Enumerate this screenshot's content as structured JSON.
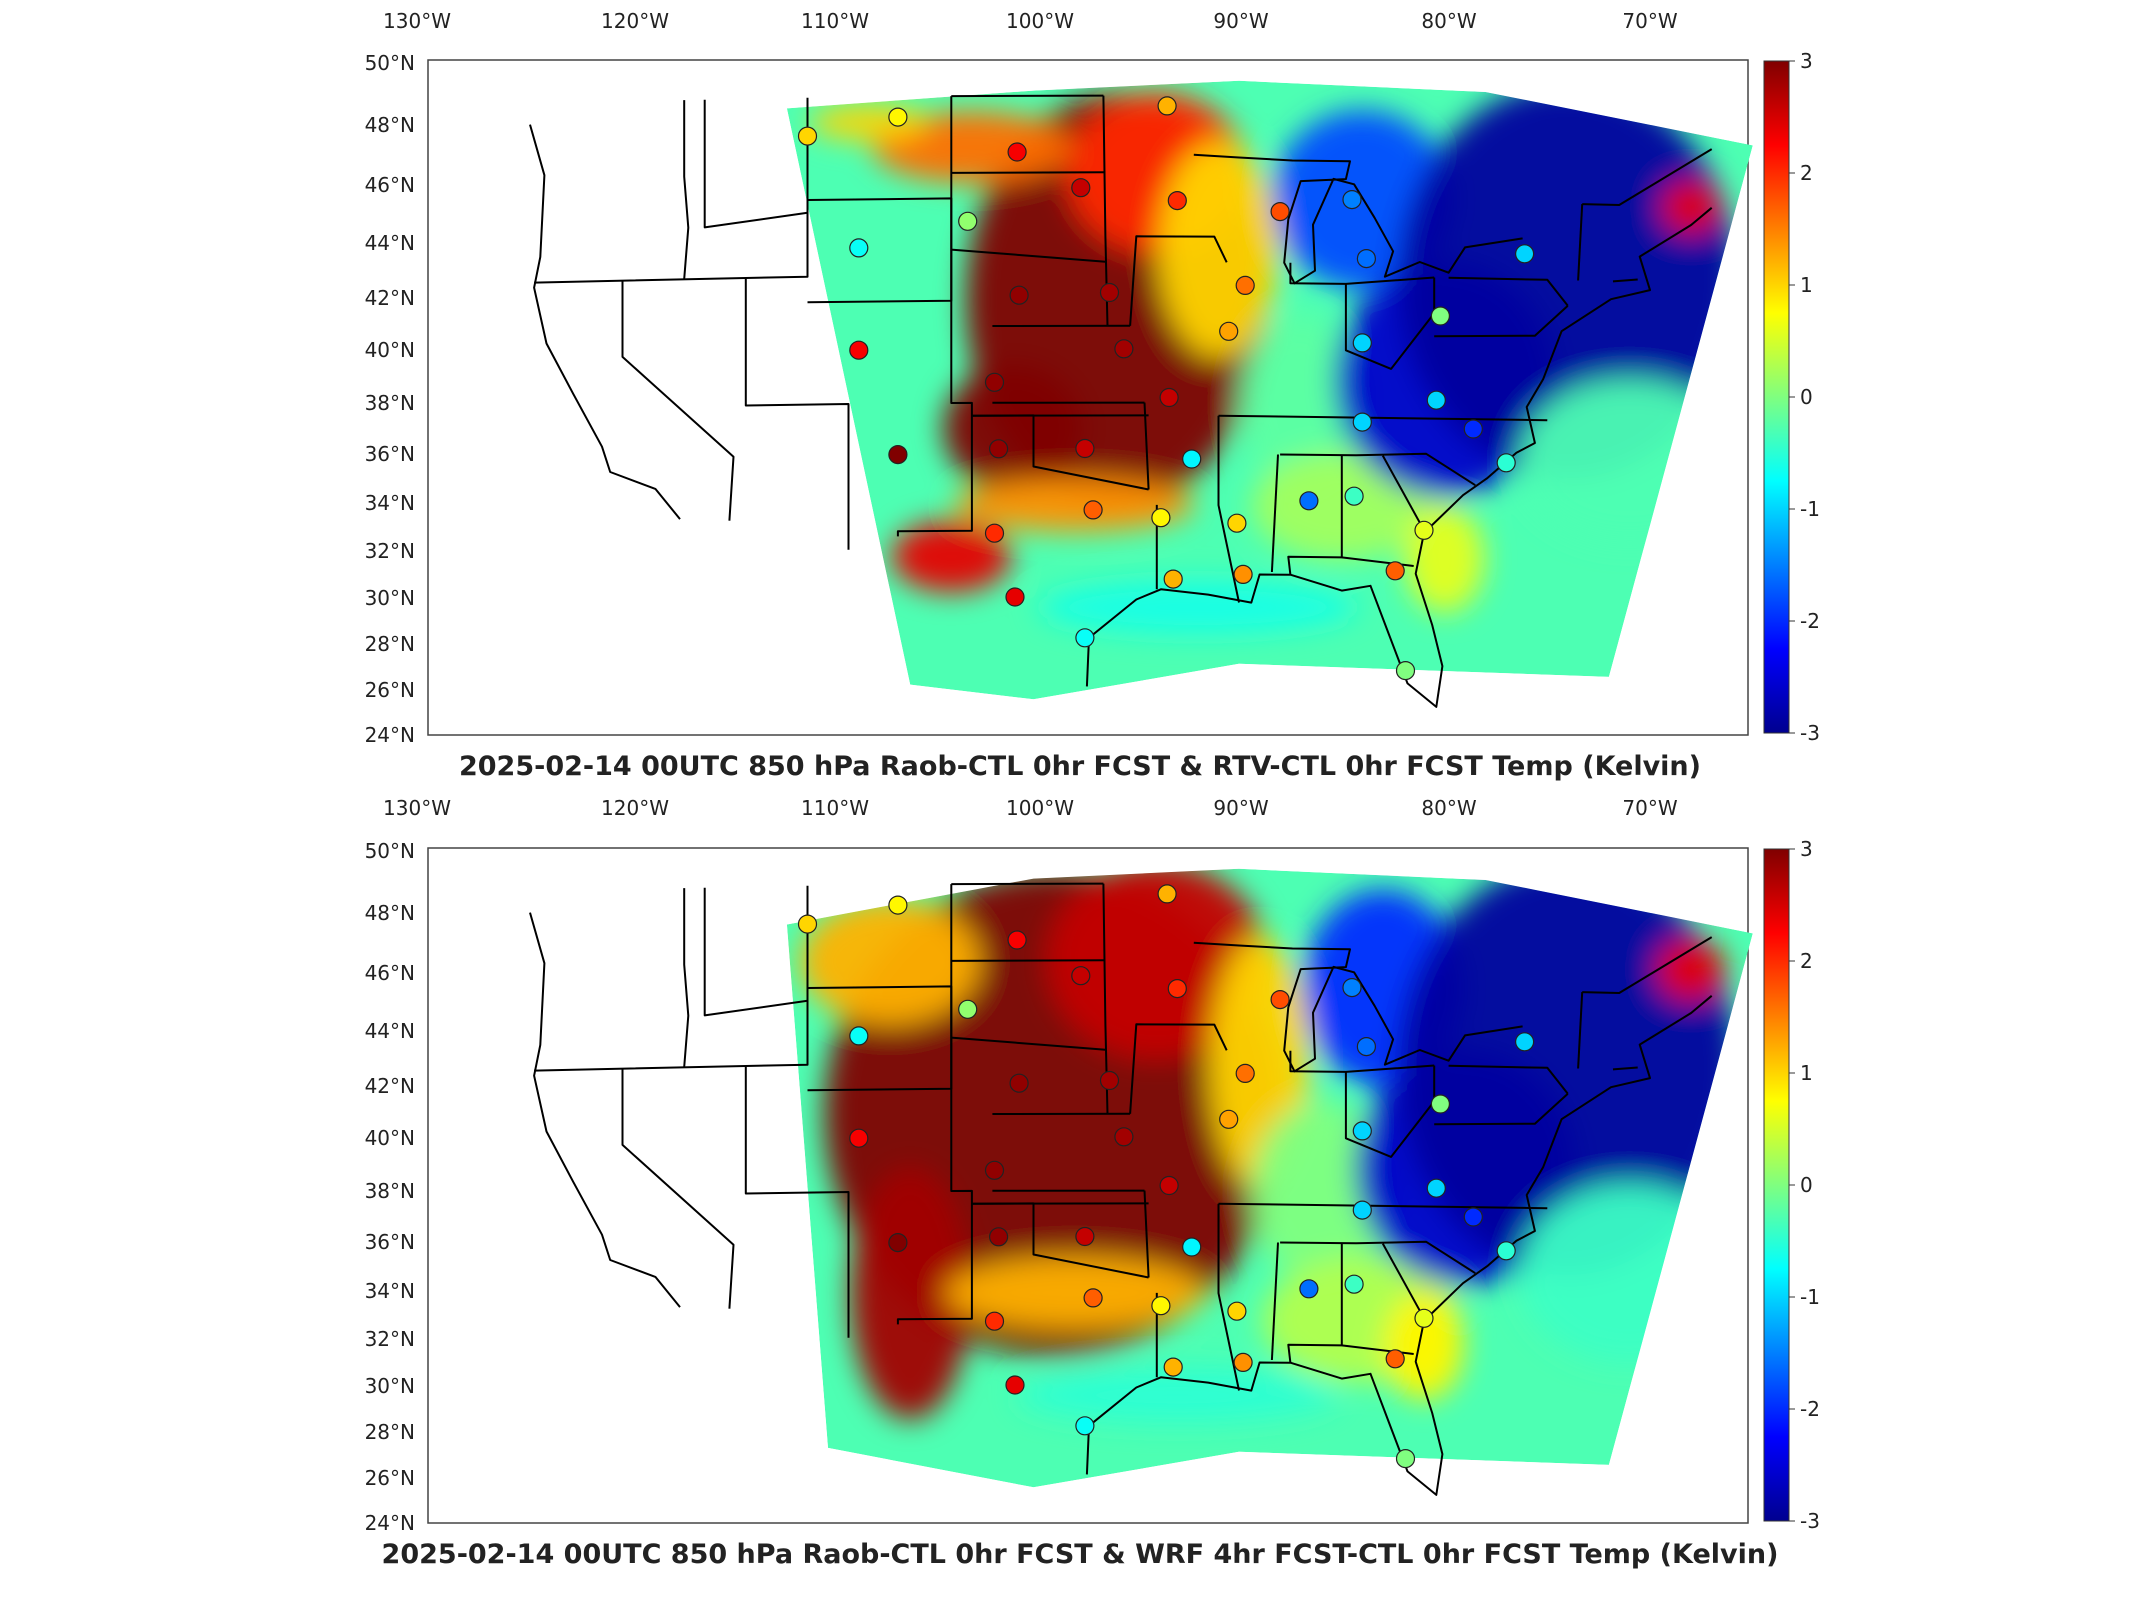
{
  "panels": [
    {
      "title": "2025-02-14 00UTC 850 hPa Raob-CTL 0hr FCST & RTV-CTL 0hr FCST Temp (Kelvin)",
      "variant": "rtv"
    },
    {
      "title": "2025-02-14 00UTC 850 hPa Raob-CTL 0hr FCST & WRF 4hr FCST-CTL 0hr FCST Temp (Kelvin)",
      "variant": "wrf"
    }
  ],
  "lon_labels": [
    "130°W",
    "120°W",
    "110°W",
    "100°W",
    "90°W",
    "80°W",
    "70°W"
  ],
  "lat_labels": [
    "50°N",
    "48°N",
    "46°N",
    "44°N",
    "42°N",
    "40°N",
    "38°N",
    "36°N",
    "34°N",
    "32°N",
    "30°N",
    "28°N",
    "26°N",
    "24°N"
  ],
  "colorbar": {
    "ticks": [
      "3",
      "2",
      "1",
      "0",
      "-1",
      "-2",
      "-3"
    ],
    "min": -3,
    "max": 3,
    "colormap": "jet",
    "colors": [
      "#00008f",
      "#0000ff",
      "#00ffff",
      "#ffff00",
      "#ff0000",
      "#800000"
    ]
  },
  "chart_data": {
    "type": "map",
    "domain": {
      "lon": [
        -130,
        -65
      ],
      "lat": [
        24,
        50
      ]
    },
    "units": "Kelvin",
    "raob_stations": [
      {
        "lon": -111.0,
        "lat": 47.5,
        "value": 1.0
      },
      {
        "lon": -106.6,
        "lat": 48.2,
        "value": 0.8
      },
      {
        "lon": -100.8,
        "lat": 46.8,
        "value": 2.3
      },
      {
        "lon": -93.5,
        "lat": 48.6,
        "value": 1.2
      },
      {
        "lon": -97.7,
        "lat": 45.4,
        "value": 2.6
      },
      {
        "lon": -93.0,
        "lat": 44.9,
        "value": 2.0
      },
      {
        "lon": -88.0,
        "lat": 44.5,
        "value": 1.8
      },
      {
        "lon": -84.5,
        "lat": 45.0,
        "value": -1.5
      },
      {
        "lon": -103.2,
        "lat": 44.1,
        "value": 0.1
      },
      {
        "lon": -108.5,
        "lat": 43.1,
        "value": -0.7
      },
      {
        "lon": -100.7,
        "lat": 41.2,
        "value": 2.9
      },
      {
        "lon": -96.3,
        "lat": 41.3,
        "value": 2.8
      },
      {
        "lon": -89.7,
        "lat": 41.6,
        "value": 1.6
      },
      {
        "lon": -83.8,
        "lat": 42.7,
        "value": -1.6
      },
      {
        "lon": -76.1,
        "lat": 43.0,
        "value": -1.0
      },
      {
        "lon": -108.5,
        "lat": 39.1,
        "value": 2.3
      },
      {
        "lon": -95.6,
        "lat": 39.1,
        "value": 2.8
      },
      {
        "lon": -90.5,
        "lat": 39.8,
        "value": 1.3
      },
      {
        "lon": -84.0,
        "lat": 39.4,
        "value": -1.0
      },
      {
        "lon": -80.2,
        "lat": 40.5,
        "value": 0.0
      },
      {
        "lon": -101.9,
        "lat": 37.8,
        "value": 2.9
      },
      {
        "lon": -93.4,
        "lat": 37.2,
        "value": 2.6
      },
      {
        "lon": -84.0,
        "lat": 36.3,
        "value": -1.0
      },
      {
        "lon": -80.4,
        "lat": 37.2,
        "value": -1.0
      },
      {
        "lon": -78.6,
        "lat": 36.1,
        "value": -2.0
      },
      {
        "lon": -106.6,
        "lat": 35.0,
        "value": 3.0
      },
      {
        "lon": -101.7,
        "lat": 35.2,
        "value": 2.9
      },
      {
        "lon": -97.5,
        "lat": 35.2,
        "value": 2.6
      },
      {
        "lon": -92.3,
        "lat": 34.8,
        "value": -0.8
      },
      {
        "lon": -86.6,
        "lat": 33.2,
        "value": -1.6
      },
      {
        "lon": -84.4,
        "lat": 33.4,
        "value": -0.4
      },
      {
        "lon": -77.0,
        "lat": 34.8,
        "value": -0.5
      },
      {
        "lon": -101.9,
        "lat": 31.9,
        "value": 2.0
      },
      {
        "lon": -97.1,
        "lat": 32.8,
        "value": 1.7
      },
      {
        "lon": -93.8,
        "lat": 32.5,
        "value": 0.8
      },
      {
        "lon": -90.1,
        "lat": 32.3,
        "value": 1.0
      },
      {
        "lon": -81.0,
        "lat": 32.1,
        "value": 0.6
      },
      {
        "lon": -100.9,
        "lat": 29.4,
        "value": 2.4
      },
      {
        "lon": -93.2,
        "lat": 30.1,
        "value": 1.2
      },
      {
        "lon": -89.8,
        "lat": 30.3,
        "value": 1.4
      },
      {
        "lon": -82.4,
        "lat": 30.5,
        "value": 1.7
      },
      {
        "lon": -97.5,
        "lat": 27.8,
        "value": -0.7
      },
      {
        "lon": -81.9,
        "lat": 26.6,
        "value": 0.0
      }
    ],
    "colorbar_range": [
      -3,
      3
    ]
  }
}
